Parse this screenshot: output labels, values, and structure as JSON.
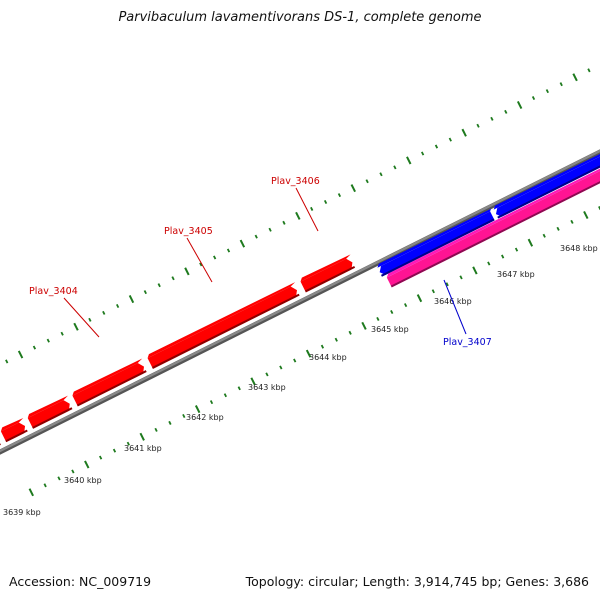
{
  "title": "Parvibaculum lavamentivorans DS-1, complete genome",
  "accession_text": "Accession: NC_009719",
  "summary_text": "Topology: circular; Length: 3,914,745 bp; Genes: 3,686",
  "colors": {
    "forward_gene": "#ff0000",
    "reverse_gene": "#0000ff",
    "rna_feature": "#ff1493",
    "backbone": "#888888",
    "ticks": "#1e7a1e",
    "forward_label": "#cc0000",
    "reverse_label": "#0000cc"
  },
  "scale_ticks": [
    {
      "label": "3639 kbp"
    },
    {
      "label": "3640 kbp"
    },
    {
      "label": "3641 kbp"
    },
    {
      "label": "3642 kbp"
    },
    {
      "label": "3643 kbp"
    },
    {
      "label": "3644 kbp"
    },
    {
      "label": "3645 kbp"
    },
    {
      "label": "3646 kbp"
    },
    {
      "label": "3647 kbp"
    },
    {
      "label": "3648 kbp"
    }
  ],
  "gene_labels": [
    {
      "name": "Plav_3404",
      "strand": "forward"
    },
    {
      "name": "Plav_3405",
      "strand": "forward"
    },
    {
      "name": "Plav_3406",
      "strand": "forward"
    },
    {
      "name": "Plav_3407",
      "strand": "reverse"
    }
  ]
}
